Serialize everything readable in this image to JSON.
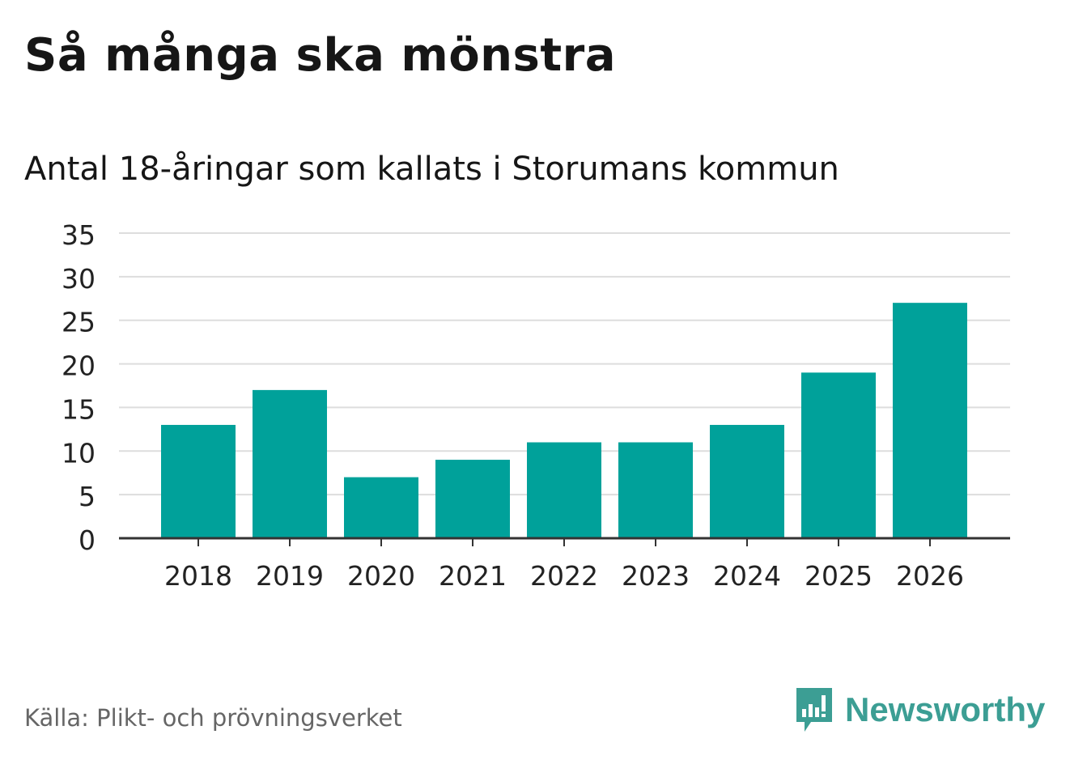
{
  "title": "Så många ska mönstra",
  "subtitle": "Antal 18-åringar som kallats i Storumans kommun",
  "source": "Källa: Plikt- och prövningsverket",
  "brand": {
    "name": "Newsworthy",
    "icon": "newsworthy-logo-icon",
    "color": "#3c9e94"
  },
  "colors": {
    "bar": "#00a19a",
    "grid": "#dddddd",
    "axis": "#333333",
    "text": "#222222"
  },
  "chart_data": {
    "type": "bar",
    "categories": [
      "2018",
      "2019",
      "2020",
      "2021",
      "2022",
      "2023",
      "2024",
      "2025",
      "2026"
    ],
    "values": [
      13,
      17,
      7,
      9,
      11,
      11,
      13,
      19,
      27
    ],
    "ylim": [
      0,
      35
    ],
    "yticks": [
      0,
      5,
      10,
      15,
      20,
      25,
      30,
      35
    ],
    "grid": true,
    "xlabel": "",
    "ylabel": ""
  }
}
